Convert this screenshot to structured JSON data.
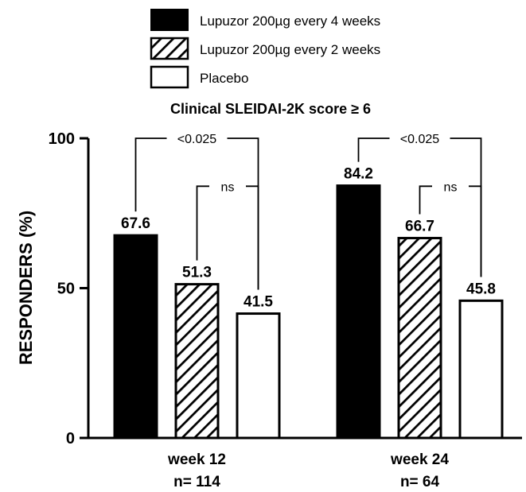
{
  "chart_data": {
    "type": "bar",
    "title": "Clinical SLEIDAI-2K score ≥ 6",
    "ylabel": "RESPONDERS (%)",
    "ylim": [
      0,
      100
    ],
    "yticks": [
      "0",
      "50",
      "100"
    ],
    "categories": [
      "week 12",
      "week 24"
    ],
    "category_sublabels": [
      "n= 114",
      "n= 64"
    ],
    "legend_position": "top",
    "series": [
      {
        "name": "Lupuzor 200µg every 4 weeks",
        "values": [
          67.6,
          84.2
        ],
        "value_labels": [
          "67.6",
          "84.2"
        ],
        "fill": "solid-black"
      },
      {
        "name": "Lupuzor 200µg every 2 weeks",
        "values": [
          51.3,
          66.7
        ],
        "value_labels": [
          "51.3",
          "66.7"
        ],
        "fill": "diagonal-hatch"
      },
      {
        "name": "Placebo",
        "values": [
          41.5,
          45.8
        ],
        "value_labels": [
          "41.5",
          "45.8"
        ],
        "fill": "white"
      }
    ],
    "comparisons": [
      {
        "category": 0,
        "from_series": 0,
        "to_series": 2,
        "label": "<0.025",
        "level": 100
      },
      {
        "category": 0,
        "from_series": 1,
        "to_series": 2,
        "label": "ns",
        "level": 84
      },
      {
        "category": 1,
        "from_series": 0,
        "to_series": 2,
        "label": "<0.025",
        "level": 100
      },
      {
        "category": 1,
        "from_series": 1,
        "to_series": 2,
        "label": "ns",
        "level": 84
      }
    ],
    "colors": {
      "bar_black": "#000000",
      "bar_white": "#ffffff",
      "stroke": "#000000"
    }
  }
}
